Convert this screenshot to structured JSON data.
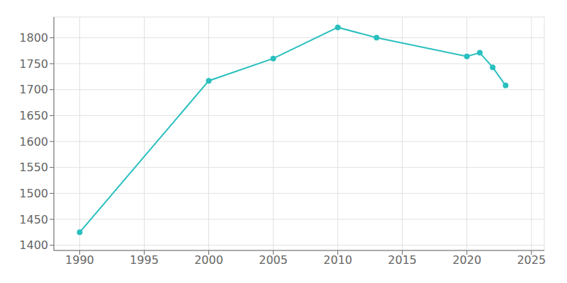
{
  "chart_data": {
    "type": "line",
    "x": [
      1990,
      2000,
      2005,
      2010,
      2013,
      2020,
      2021,
      2022,
      2023
    ],
    "values": [
      1425,
      1717,
      1760,
      1820,
      1800,
      1764,
      1771,
      1743,
      1708
    ],
    "color": "#2abfbf",
    "marker": "circle",
    "xlim": [
      1988,
      2026
    ],
    "ylim": [
      1390,
      1840
    ],
    "xticks": [
      1990,
      1995,
      2000,
      2005,
      2010,
      2015,
      2020,
      2025
    ],
    "yticks": [
      1400,
      1450,
      1500,
      1550,
      1600,
      1650,
      1700,
      1750,
      1800
    ],
    "grid": true
  }
}
